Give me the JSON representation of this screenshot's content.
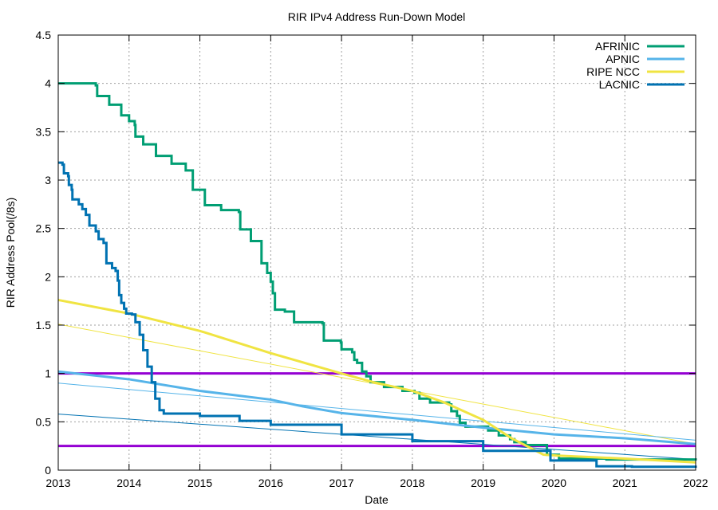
{
  "chart_data": {
    "type": "line",
    "title": "RIR IPv4 Address Run-Down Model",
    "xlabel": "Date",
    "ylabel": "RIR Address Pool(/8s)",
    "xlim": [
      2013,
      2022
    ],
    "ylim": [
      0,
      4.5
    ],
    "xticks": [
      "2013",
      "2014",
      "2015",
      "2016",
      "2017",
      "2018",
      "2019",
      "2020",
      "2021",
      "2022"
    ],
    "yticks": [
      "0",
      "0.5",
      "1",
      "1.5",
      "2",
      "2.5",
      "3",
      "3.5",
      "4",
      "4.5"
    ],
    "grid": true,
    "legend_position": "top-right",
    "series": [
      {
        "name": "AFRINIC",
        "color": "#009e73",
        "step": true,
        "points": [
          [
            2013.0,
            4.0
          ],
          [
            2013.53,
            3.98
          ],
          [
            2013.55,
            3.87
          ],
          [
            2013.72,
            3.78
          ],
          [
            2013.89,
            3.67
          ],
          [
            2014.0,
            3.61
          ],
          [
            2014.08,
            3.57
          ],
          [
            2014.09,
            3.45
          ],
          [
            2014.2,
            3.37
          ],
          [
            2014.38,
            3.25
          ],
          [
            2014.6,
            3.17
          ],
          [
            2014.8,
            3.1
          ],
          [
            2014.9,
            2.9
          ],
          [
            2015.07,
            2.74
          ],
          [
            2015.3,
            2.69
          ],
          [
            2015.55,
            2.67
          ],
          [
            2015.57,
            2.49
          ],
          [
            2015.72,
            2.37
          ],
          [
            2015.87,
            2.14
          ],
          [
            2015.95,
            2.04
          ],
          [
            2016.0,
            1.95
          ],
          [
            2016.03,
            1.83
          ],
          [
            2016.06,
            1.66
          ],
          [
            2016.2,
            1.64
          ],
          [
            2016.33,
            1.53
          ],
          [
            2016.73,
            1.52
          ],
          [
            2016.75,
            1.34
          ],
          [
            2016.99,
            1.32
          ],
          [
            2017.0,
            1.25
          ],
          [
            2017.15,
            1.22
          ],
          [
            2017.18,
            1.14
          ],
          [
            2017.22,
            1.11
          ],
          [
            2017.29,
            1.02
          ],
          [
            2017.35,
            0.97
          ],
          [
            2017.41,
            0.91
          ],
          [
            2017.6,
            0.86
          ],
          [
            2017.86,
            0.82
          ],
          [
            2018.03,
            0.8
          ],
          [
            2018.1,
            0.74
          ],
          [
            2018.25,
            0.7
          ],
          [
            2018.52,
            0.68
          ],
          [
            2018.55,
            0.61
          ],
          [
            2018.63,
            0.56
          ],
          [
            2018.67,
            0.49
          ],
          [
            2018.75,
            0.45
          ],
          [
            2019.07,
            0.41
          ],
          [
            2019.22,
            0.36
          ],
          [
            2019.38,
            0.32
          ],
          [
            2019.44,
            0.29
          ],
          [
            2019.6,
            0.26
          ],
          [
            2019.9,
            0.16
          ],
          [
            2020.07,
            0.12
          ],
          [
            2020.74,
            0.11
          ],
          [
            2022.0,
            0.1
          ]
        ]
      },
      {
        "name": "APNIC",
        "color": "#56b4e9",
        "step": false,
        "points": [
          [
            2013.0,
            1.02
          ],
          [
            2014.0,
            0.94
          ],
          [
            2015.0,
            0.82
          ],
          [
            2016.0,
            0.73
          ],
          [
            2016.45,
            0.66
          ],
          [
            2017.0,
            0.59
          ],
          [
            2018.0,
            0.52
          ],
          [
            2019.0,
            0.44
          ],
          [
            2020.0,
            0.37
          ],
          [
            2021.0,
            0.33
          ],
          [
            2022.0,
            0.27
          ]
        ]
      },
      {
        "name": "RIPE NCC",
        "color": "#f0e442",
        "step": false,
        "points": [
          [
            2013.0,
            1.76
          ],
          [
            2014.0,
            1.62
          ],
          [
            2015.0,
            1.44
          ],
          [
            2016.0,
            1.21
          ],
          [
            2017.0,
            1.0
          ],
          [
            2017.45,
            0.91
          ],
          [
            2018.0,
            0.82
          ],
          [
            2018.45,
            0.7
          ],
          [
            2019.0,
            0.52
          ],
          [
            2019.4,
            0.33
          ],
          [
            2019.85,
            0.16
          ],
          [
            2020.05,
            0.15
          ],
          [
            2021.0,
            0.12
          ],
          [
            2022.0,
            0.08
          ]
        ]
      },
      {
        "name": "LACNIC",
        "color": "#0072b2",
        "step": true,
        "points": [
          [
            2013.0,
            3.18
          ],
          [
            2013.06,
            3.16
          ],
          [
            2013.08,
            3.07
          ],
          [
            2013.14,
            3.04
          ],
          [
            2013.15,
            2.95
          ],
          [
            2013.19,
            2.9
          ],
          [
            2013.2,
            2.8
          ],
          [
            2013.29,
            2.75
          ],
          [
            2013.34,
            2.7
          ],
          [
            2013.39,
            2.64
          ],
          [
            2013.44,
            2.53
          ],
          [
            2013.53,
            2.47
          ],
          [
            2013.57,
            2.39
          ],
          [
            2013.64,
            2.35
          ],
          [
            2013.68,
            2.14
          ],
          [
            2013.76,
            2.09
          ],
          [
            2013.81,
            2.06
          ],
          [
            2013.84,
            1.96
          ],
          [
            2013.86,
            1.81
          ],
          [
            2013.89,
            1.73
          ],
          [
            2013.93,
            1.67
          ],
          [
            2013.96,
            1.62
          ],
          [
            2014.04,
            1.61
          ],
          [
            2014.09,
            1.53
          ],
          [
            2014.15,
            1.4
          ],
          [
            2014.2,
            1.24
          ],
          [
            2014.26,
            1.07
          ],
          [
            2014.32,
            0.91
          ],
          [
            2014.37,
            0.74
          ],
          [
            2014.43,
            0.62
          ],
          [
            2014.49,
            0.585
          ],
          [
            2015.0,
            0.56
          ],
          [
            2015.56,
            0.51
          ],
          [
            2016.0,
            0.47
          ],
          [
            2017.0,
            0.37
          ],
          [
            2018.0,
            0.3
          ],
          [
            2019.0,
            0.2
          ],
          [
            2019.95,
            0.1
          ],
          [
            2020.6,
            0.04
          ],
          [
            2021.1,
            0.035
          ],
          [
            2022.0,
            0.025
          ]
        ]
      }
    ],
    "projections": [
      {
        "color": "#f0e442",
        "points": [
          [
            2013.0,
            1.51
          ],
          [
            2022.0,
            0.27
          ]
        ]
      },
      {
        "color": "#56b4e9",
        "points": [
          [
            2013.0,
            0.9
          ],
          [
            2022.0,
            0.31
          ]
        ]
      },
      {
        "color": "#0072b2",
        "points": [
          [
            2013.0,
            0.58
          ],
          [
            2022.0,
            0.11
          ]
        ]
      }
    ],
    "thresholds": [
      {
        "value": 1.0,
        "color": "#9400d3"
      },
      {
        "value": 0.25,
        "color": "#9400d3"
      }
    ]
  }
}
